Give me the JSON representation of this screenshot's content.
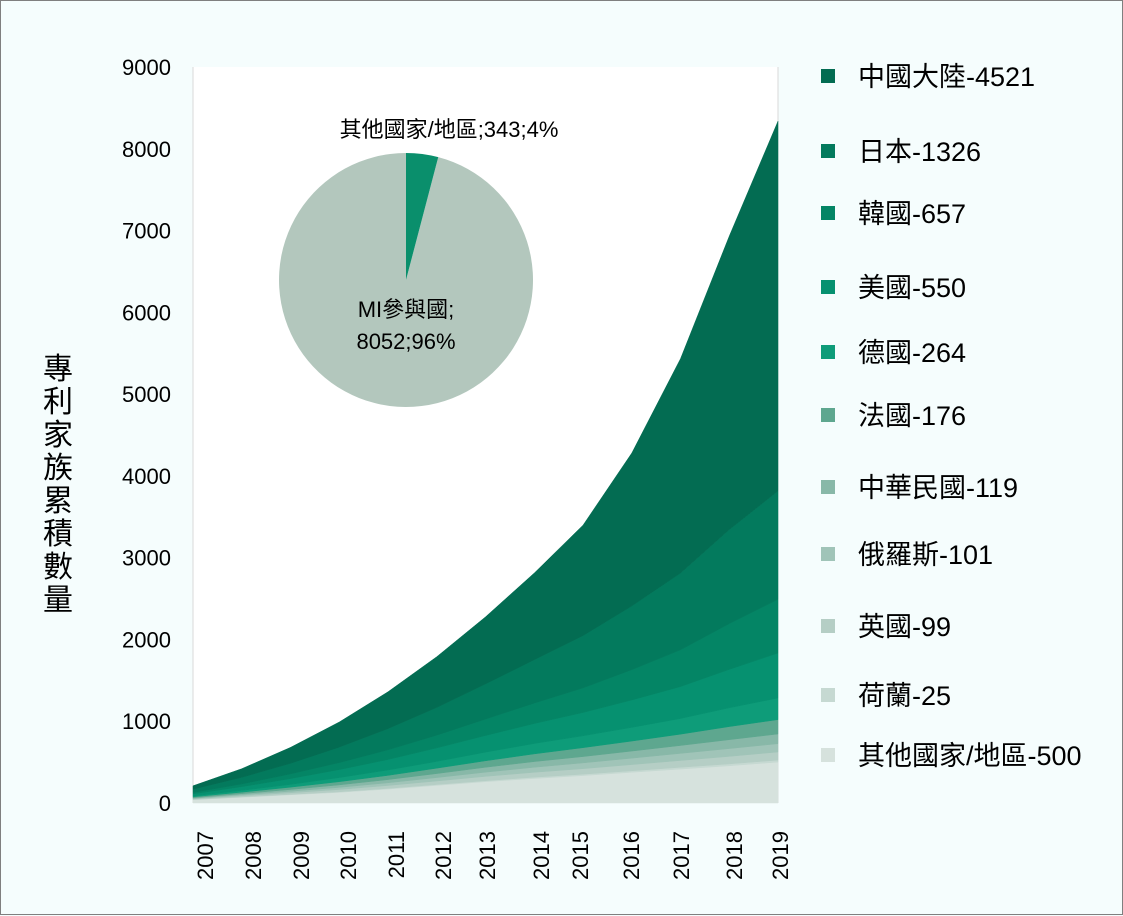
{
  "chart_data": {
    "type": "area",
    "title": "",
    "ylabel": "專利家族累積數量",
    "xlabel": "",
    "ylim": [
      0,
      9000
    ],
    "yticks": [
      0,
      1000,
      2000,
      3000,
      4000,
      5000,
      6000,
      7000,
      8000,
      9000
    ],
    "x": [
      "2007",
      "2008",
      "2009",
      "2010",
      "2011",
      "2012",
      "2013",
      "2014",
      "2015",
      "2016",
      "2017",
      "2018",
      "2019"
    ],
    "stack_order": "bottom_first",
    "series": [
      {
        "name": "其他國家/地區",
        "legend": "其他國家/地區-500",
        "color": "#d6e2dd",
        "values": [
          40,
          70,
          100,
          130,
          170,
          215,
          260,
          300,
          335,
          375,
          415,
          455,
          500
        ]
      },
      {
        "name": "荷蘭",
        "legend": "荷蘭-25",
        "color": "#c6d9d2",
        "values": [
          2,
          4,
          5,
          7,
          9,
          11,
          13,
          15,
          17,
          19,
          21,
          23,
          25
        ]
      },
      {
        "name": "英國",
        "legend": "英國-99",
        "color": "#b5cec5",
        "values": [
          8,
          14,
          20,
          28,
          35,
          43,
          52,
          60,
          68,
          76,
          84,
          92,
          99
        ]
      },
      {
        "name": "俄羅斯",
        "legend": "俄羅斯-101",
        "color": "#a0c4b8",
        "values": [
          6,
          12,
          18,
          26,
          33,
          42,
          52,
          62,
          70,
          78,
          86,
          95,
          101
        ]
      },
      {
        "name": "中華民國",
        "legend": "中華民國-119",
        "color": "#88b8a8",
        "values": [
          8,
          14,
          22,
          30,
          39,
          49,
          59,
          69,
          78,
          87,
          97,
          109,
          119
        ]
      },
      {
        "name": "法國",
        "legend": "法國-176",
        "color": "#5ea78f",
        "values": [
          10,
          18,
          28,
          40,
          52,
          65,
          80,
          95,
          108,
          122,
          138,
          160,
          176
        ]
      },
      {
        "name": "德國",
        "legend": "德國-264",
        "color": "#0e9c79",
        "values": [
          12,
          22,
          35,
          50,
          66,
          84,
          105,
          126,
          146,
          168,
          192,
          230,
          264
        ]
      },
      {
        "name": "美國",
        "legend": "美國-550",
        "color": "#069170",
        "values": [
          25,
          45,
          70,
          98,
          128,
          165,
          205,
          245,
          285,
          335,
          390,
          470,
          550
        ]
      },
      {
        "name": "韓國",
        "legend": "韓國-657",
        "color": "#048565",
        "values": [
          18,
          35,
          58,
          85,
          118,
          155,
          200,
          250,
          300,
          370,
          450,
          560,
          657
        ]
      },
      {
        "name": "日本",
        "legend": "日本-1326",
        "color": "#037a5d",
        "values": [
          40,
          80,
          130,
          190,
          260,
          340,
          430,
          530,
          640,
          780,
          940,
          1150,
          1326
        ]
      },
      {
        "name": "中國大陸",
        "legend": "中國大陸-4521",
        "color": "#036c52",
        "values": [
          41,
          106,
          194,
          306,
          450,
          620,
          820,
          1060,
          1350,
          1870,
          2620,
          3590,
          4521
        ]
      }
    ],
    "inset_pie": {
      "slices": [
        {
          "label": "MI參與國;",
          "value_label": "8052;96%",
          "value": 8052,
          "percent": 96,
          "color": "#b3c7bd"
        },
        {
          "label": "其他國家/地區;343;4%",
          "value": 343,
          "percent": 4,
          "color": "#0a8f6c"
        }
      ]
    },
    "legend_position": "right"
  }
}
